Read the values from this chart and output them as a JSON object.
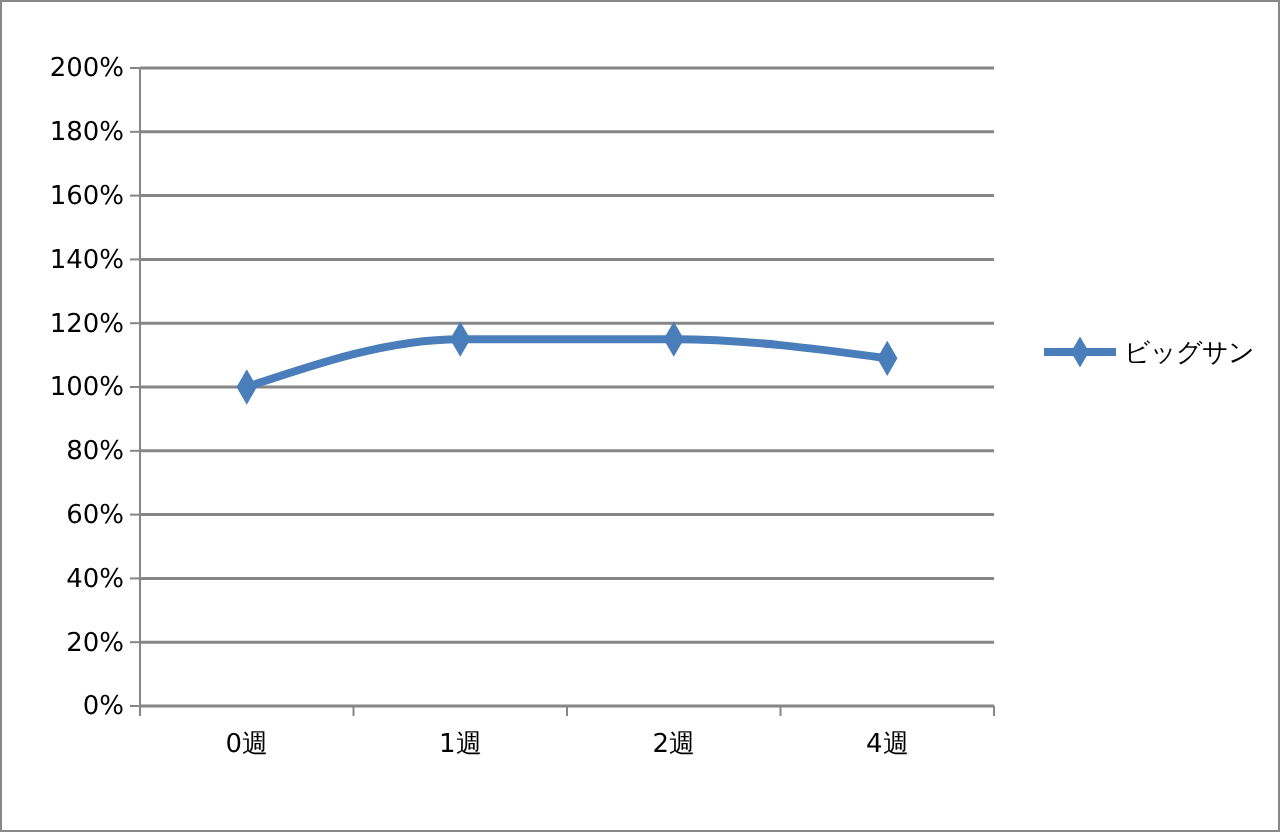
{
  "chart_data": {
    "type": "line",
    "categories": [
      "0週",
      "1週",
      "2週",
      "4週"
    ],
    "series": [
      {
        "name": "ビッグサン",
        "color": "#4a7ebb",
        "values": [
          100,
          115,
          115,
          109
        ]
      }
    ],
    "ylim": [
      0,
      200
    ],
    "yticks": [
      {
        "value": 0,
        "label": "0%"
      },
      {
        "value": 20,
        "label": "20%"
      },
      {
        "value": 40,
        "label": "40%"
      },
      {
        "value": 60,
        "label": "60%"
      },
      {
        "value": 80,
        "label": "80%"
      },
      {
        "value": 100,
        "label": "100%"
      },
      {
        "value": 120,
        "label": "120%"
      },
      {
        "value": 140,
        "label": "140%"
      },
      {
        "value": 160,
        "label": "160%"
      },
      {
        "value": 180,
        "label": "180%"
      },
      {
        "value": 200,
        "label": "200%"
      }
    ],
    "grid": "y",
    "legend": "right",
    "marker": "diamond",
    "line_style": "solid"
  }
}
